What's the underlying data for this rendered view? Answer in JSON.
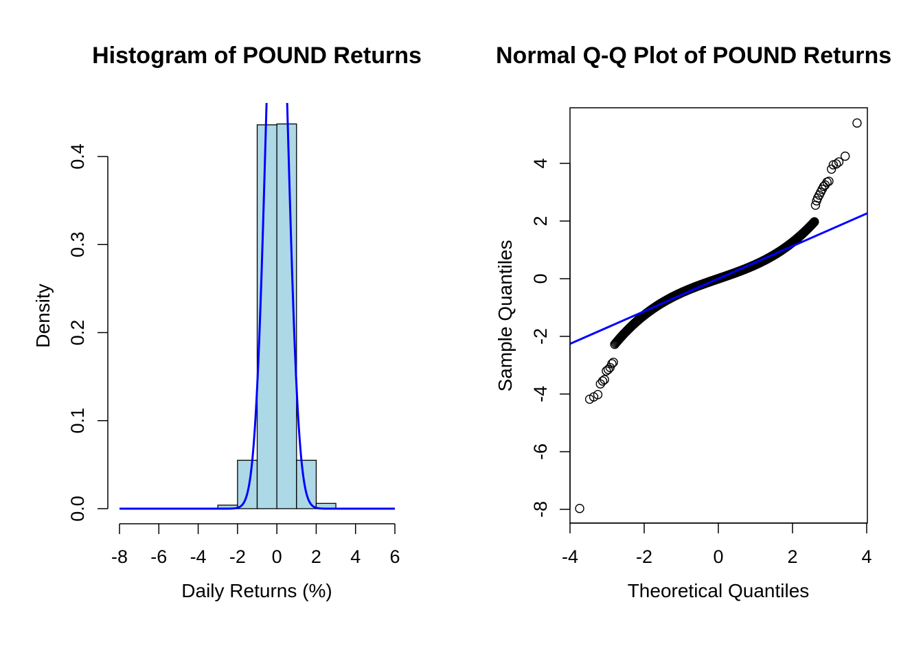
{
  "chart_data": [
    {
      "type": "bar",
      "subtype": "histogram",
      "title": "Histogram of POUND Returns",
      "xlabel": "Daily Returns (%)",
      "ylabel": "Density",
      "xlim": [
        -8,
        6
      ],
      "ylim": [
        0,
        0.4
      ],
      "x_ticks": [
        "-8",
        "-6",
        "-4",
        "-2",
        "0",
        "2",
        "4",
        "6"
      ],
      "y_ticks": [
        "0.0",
        "0.1",
        "0.2",
        "0.3",
        "0.4"
      ],
      "bin_edges": [
        -3,
        -2,
        -1,
        0,
        1,
        2,
        3
      ],
      "values": [
        0.004,
        0.055,
        0.436,
        0.437,
        0.055,
        0.006
      ],
      "bar_color": "#add8e6",
      "curve": {
        "color": "#0000ff",
        "mean": 0.0,
        "sd": 0.55,
        "x_range": [
          -8,
          6
        ]
      }
    },
    {
      "type": "scatter",
      "subtype": "qq",
      "title": "Normal Q-Q Plot of POUND Returns",
      "xlabel": "Theoretical Quantiles",
      "ylabel": "Sample Quantiles",
      "xlim": [
        -4,
        4
      ],
      "ylim": [
        -8,
        5.5
      ],
      "x_ticks": [
        "-4",
        "-2",
        "0",
        "2",
        "4"
      ],
      "y_ticks": [
        "-8",
        "-6",
        "-4",
        "-2",
        "0",
        "2",
        "4"
      ],
      "point_color": "#000000",
      "line_color": "#0000ff",
      "reference_line": {
        "intercept": 0.0,
        "slope": 0.565
      },
      "points": [
        [
          -3.74,
          -7.97
        ],
        [
          -3.47,
          -4.18
        ],
        [
          -3.36,
          -4.1
        ],
        [
          -3.25,
          -4.02
        ],
        [
          -3.18,
          -3.65
        ],
        [
          -3.12,
          -3.55
        ],
        [
          -3.07,
          -3.5
        ],
        [
          -3.02,
          -3.2
        ],
        [
          -2.97,
          -3.15
        ],
        [
          -2.92,
          -3.08
        ],
        [
          -2.87,
          -2.95
        ],
        [
          -2.83,
          -2.9
        ],
        [
          3.74,
          5.4
        ],
        [
          3.42,
          4.25
        ],
        [
          3.25,
          4.05
        ],
        [
          3.18,
          3.98
        ],
        [
          3.1,
          3.95
        ],
        [
          3.05,
          3.8
        ],
        [
          2.98,
          3.38
        ],
        [
          2.93,
          3.35
        ],
        [
          2.88,
          3.25
        ],
        [
          2.84,
          3.2
        ],
        [
          2.8,
          3.1
        ],
        [
          2.76,
          3.0
        ],
        [
          2.72,
          2.9
        ],
        [
          2.68,
          2.8
        ],
        [
          2.65,
          2.7
        ],
        [
          2.62,
          2.55
        ]
      ],
      "dense_body": {
        "t_range": [
          -2.8,
          2.6
        ],
        "description": ""
      }
    }
  ]
}
